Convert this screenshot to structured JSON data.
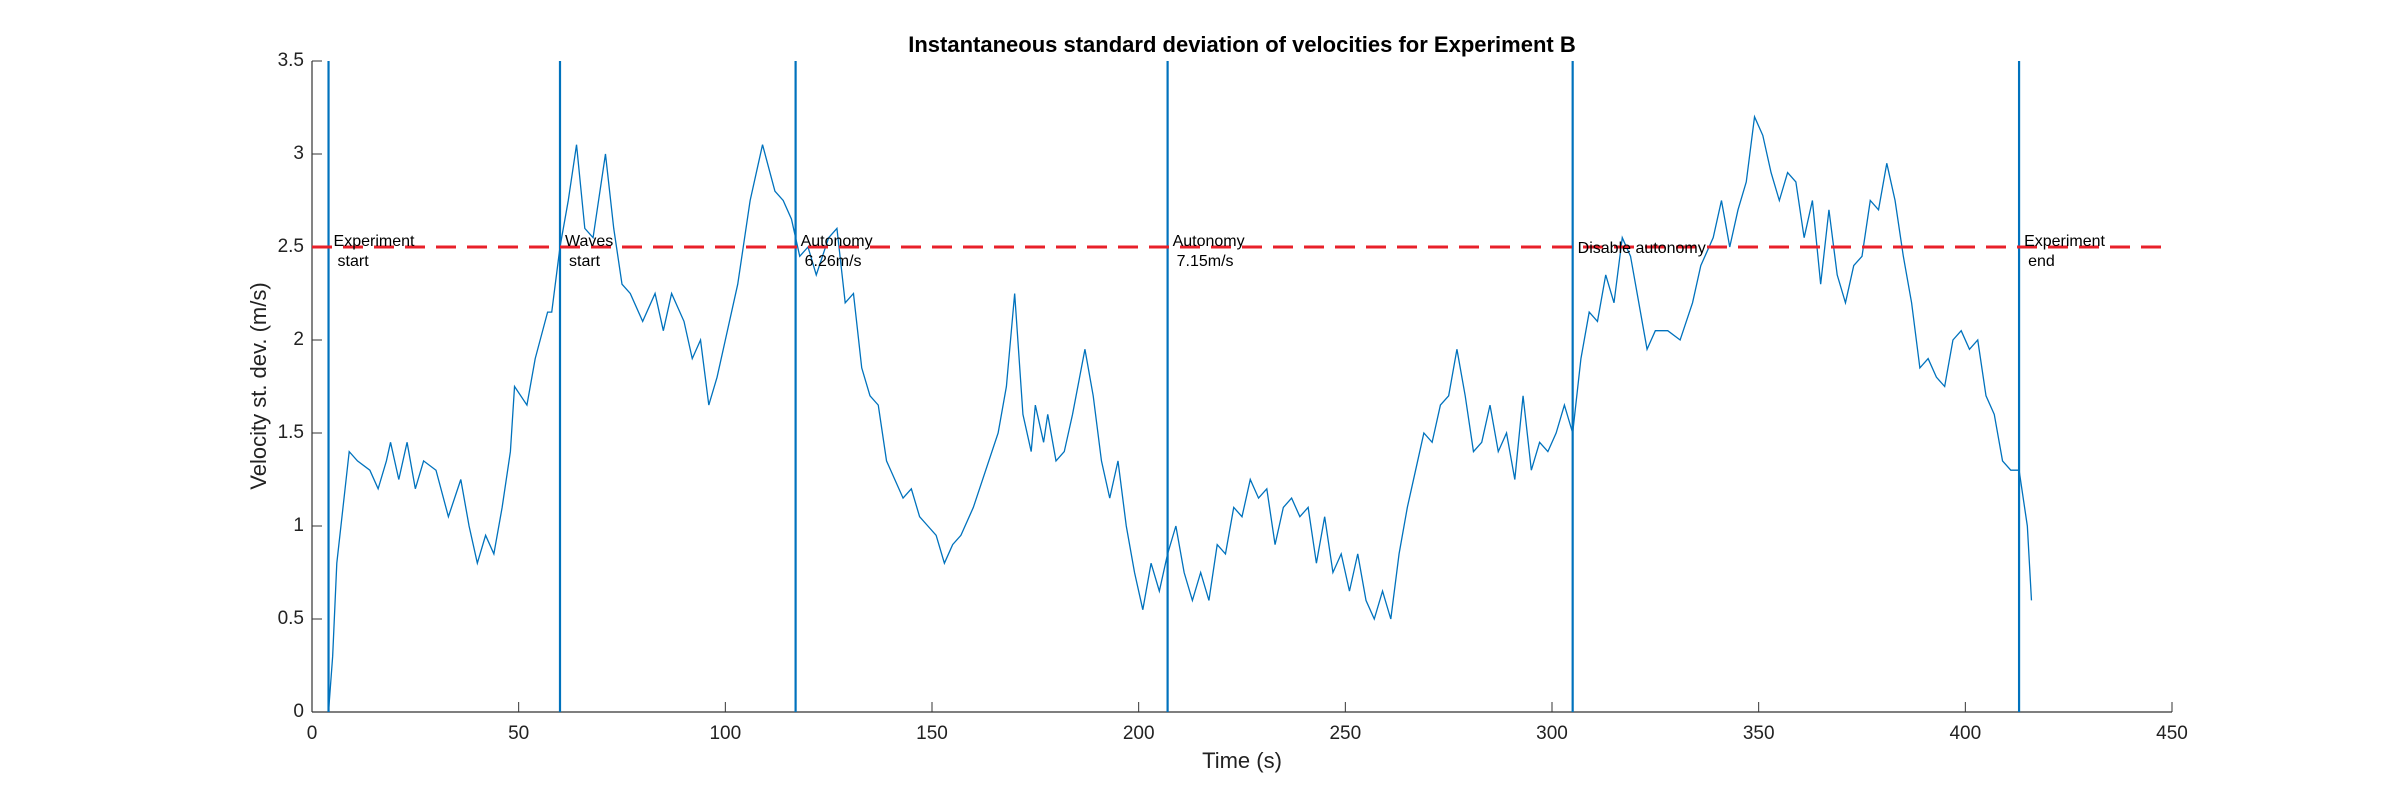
{
  "chart_data": {
    "type": "line",
    "title": "Instantaneous standard deviation of velocities for Experiment B",
    "xlabel": "Time (s)",
    "ylabel": "Velocity st. dev. (m/s)",
    "color": "#0072bd",
    "x": [
      4,
      5,
      6,
      8,
      9,
      11,
      14,
      16,
      18,
      19,
      21,
      23,
      25,
      27,
      30,
      33,
      36,
      38,
      40,
      42,
      44,
      46,
      48,
      49,
      52,
      54,
      57,
      58,
      60,
      62,
      64,
      66,
      68,
      71,
      73,
      75,
      77,
      80,
      83,
      85,
      87,
      90,
      92,
      94,
      96,
      98,
      100,
      103,
      106,
      109,
      112,
      114,
      116,
      118,
      120,
      122,
      125,
      127,
      129,
      131,
      133,
      135,
      137,
      139,
      141,
      143,
      145,
      147,
      149,
      151,
      153,
      155,
      157,
      160,
      163,
      166,
      168,
      170,
      172,
      174,
      175,
      177,
      178,
      180,
      182,
      184,
      187,
      189,
      191,
      193,
      195,
      197,
      199,
      201,
      203,
      205,
      207,
      209,
      211,
      213,
      215,
      217,
      219,
      221,
      223,
      225,
      227,
      229,
      231,
      233,
      235,
      237,
      239,
      241,
      243,
      245,
      247,
      249,
      251,
      253,
      255,
      257,
      259,
      261,
      263,
      265,
      267,
      269,
      271,
      273,
      275,
      277,
      279,
      281,
      283,
      285,
      287,
      289,
      291,
      293,
      295,
      297,
      299,
      301,
      303,
      305,
      307,
      309,
      311,
      313,
      315,
      317,
      319,
      321,
      323,
      325,
      328,
      331,
      334,
      336,
      339,
      341,
      343,
      345,
      347,
      349,
      351,
      353,
      355,
      357,
      359,
      361,
      363,
      365,
      367,
      369,
      371,
      373,
      375,
      377,
      379,
      381,
      383,
      385,
      387,
      389,
      391,
      393,
      395,
      397,
      399,
      401,
      403,
      405,
      407,
      409,
      411,
      413,
      415,
      416
    ],
    "values": [
      0,
      0.3,
      0.8,
      1.2,
      1.4,
      1.35,
      1.3,
      1.2,
      1.35,
      1.45,
      1.25,
      1.45,
      1.2,
      1.35,
      1.3,
      1.05,
      1.25,
      1.0,
      0.8,
      0.95,
      0.85,
      1.1,
      1.4,
      1.75,
      1.65,
      1.9,
      2.15,
      2.15,
      2.5,
      2.75,
      3.05,
      2.6,
      2.55,
      3.0,
      2.6,
      2.3,
      2.25,
      2.1,
      2.25,
      2.05,
      2.25,
      2.1,
      1.9,
      2.0,
      1.65,
      1.8,
      2.0,
      2.3,
      2.75,
      3.05,
      2.8,
      2.75,
      2.65,
      2.45,
      2.5,
      2.35,
      2.55,
      2.6,
      2.2,
      2.25,
      1.85,
      1.7,
      1.65,
      1.35,
      1.25,
      1.15,
      1.2,
      1.05,
      1.0,
      0.95,
      0.8,
      0.9,
      0.95,
      1.1,
      1.3,
      1.5,
      1.75,
      2.25,
      1.6,
      1.4,
      1.65,
      1.45,
      1.6,
      1.35,
      1.4,
      1.6,
      1.95,
      1.7,
      1.35,
      1.15,
      1.35,
      1.0,
      0.75,
      0.55,
      0.8,
      0.65,
      0.85,
      1.0,
      0.75,
      0.6,
      0.75,
      0.6,
      0.9,
      0.85,
      1.1,
      1.05,
      1.25,
      1.15,
      1.2,
      0.9,
      1.1,
      1.15,
      1.05,
      1.1,
      0.8,
      1.05,
      0.75,
      0.85,
      0.65,
      0.85,
      0.6,
      0.5,
      0.65,
      0.5,
      0.85,
      1.1,
      1.3,
      1.5,
      1.45,
      1.65,
      1.7,
      1.95,
      1.7,
      1.4,
      1.45,
      1.65,
      1.4,
      1.5,
      1.25,
      1.7,
      1.3,
      1.45,
      1.4,
      1.5,
      1.65,
      1.5,
      1.9,
      2.15,
      2.1,
      2.35,
      2.2,
      2.55,
      2.45,
      2.2,
      1.95,
      2.05,
      2.05,
      2.0,
      2.2,
      2.4,
      2.55,
      2.75,
      2.5,
      2.7,
      2.85,
      3.2,
      3.1,
      2.9,
      2.75,
      2.9,
      2.85,
      2.55,
      2.75,
      2.3,
      2.7,
      2.35,
      2.2,
      2.4,
      2.45,
      2.75,
      2.7,
      2.95,
      2.75,
      2.45,
      2.2,
      1.85,
      1.9,
      1.8,
      1.75,
      2.0,
      2.05,
      1.95,
      2.0,
      1.7,
      1.6,
      1.35,
      1.3,
      1.3,
      1.0,
      0.6
    ],
    "reference_line": {
      "y": 2.5,
      "color": "#e8202a"
    },
    "events": [
      {
        "x": 4,
        "label": [
          "Experiment",
          "start"
        ]
      },
      {
        "x": 60,
        "label": [
          "Waves",
          "start"
        ]
      },
      {
        "x": 117,
        "label": [
          "Autonomy",
          "6.26m/s"
        ]
      },
      {
        "x": 207,
        "label": [
          "Autonomy",
          "7.15m/s"
        ]
      },
      {
        "x": 305,
        "label": [
          "Disable autonomy"
        ]
      },
      {
        "x": 413,
        "label": [
          "Experiment",
          "end"
        ]
      }
    ],
    "xlim": [
      0,
      450
    ],
    "xticks": [
      0,
      50,
      100,
      150,
      200,
      250,
      300,
      350,
      400,
      450
    ],
    "ylim": [
      0,
      3.5
    ],
    "yticks": [
      0,
      0.5,
      1,
      1.5,
      2,
      2.5,
      3,
      3.5
    ]
  }
}
